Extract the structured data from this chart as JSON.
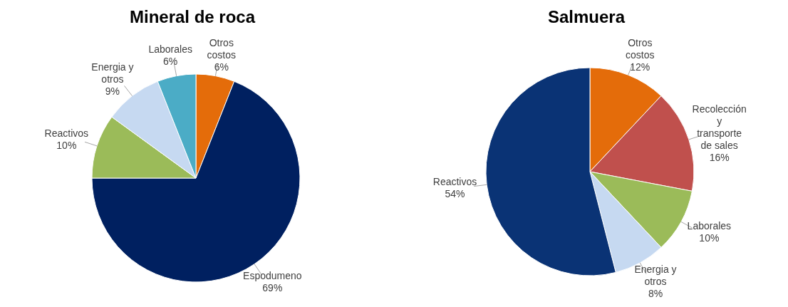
{
  "chart_data": [
    {
      "type": "pie",
      "title": "Mineral de roca",
      "categories": [
        "Otros costos",
        "Espodumeno",
        "Reactivos",
        "Energia y otros",
        "Laborales"
      ],
      "values": [
        6,
        69,
        10,
        9,
        6
      ],
      "value_labels": [
        "6%",
        "69%",
        "10%",
        "9%",
        "6%"
      ],
      "colors": [
        "#e46c0a",
        "#002060",
        "#9bbb59",
        "#c6d9f1",
        "#4bacc6"
      ]
    },
    {
      "type": "pie",
      "title": "Salmuera",
      "categories": [
        "Otros costos",
        "Recolección y transporte de sales",
        "Laborales",
        "Energia y otros",
        "Reactivos"
      ],
      "values": [
        12,
        16,
        10,
        8,
        54
      ],
      "value_labels": [
        "12%",
        "16%",
        "10%",
        "8%",
        "54%"
      ],
      "colors": [
        "#e46c0a",
        "#c0504d",
        "#9bbb59",
        "#c6d9f1",
        "#0a3375"
      ]
    }
  ]
}
